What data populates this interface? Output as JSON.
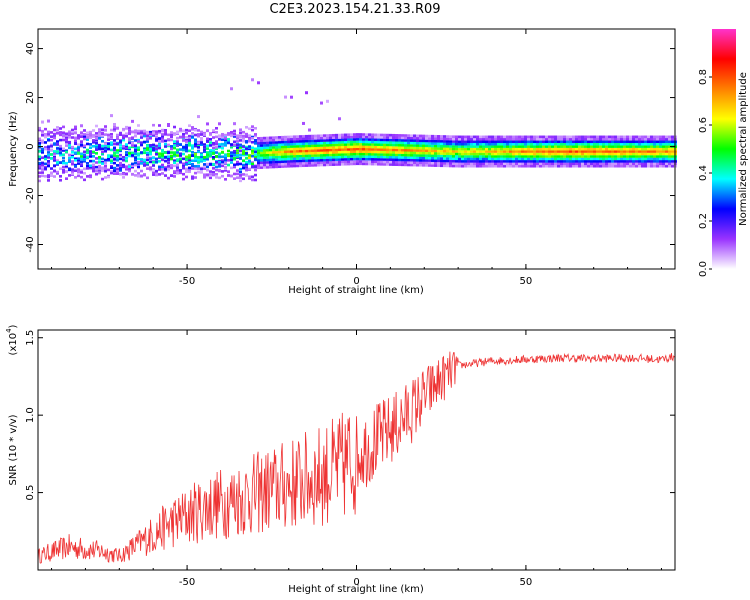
{
  "title": "C2E3.2023.154.21.33.R09",
  "chart_data": [
    {
      "type": "heatmap",
      "xlabel": "Height of straight line (km)",
      "ylabel": "Frequency (Hz)",
      "xlim": [
        -94,
        94
      ],
      "ylim": [
        -50,
        48
      ],
      "xticks": [
        -50,
        0,
        50
      ],
      "yticks": [
        -40,
        -20,
        0,
        20,
        40
      ],
      "colorbar": {
        "label": "Normalized spectral amplitude",
        "range": [
          0,
          1
        ],
        "ticks": [
          0.0,
          0.2,
          0.4,
          0.6,
          0.8
        ],
        "colors": [
          "#ffffff",
          "#9933ff",
          "#0000ff",
          "#00ffff",
          "#00ff00",
          "#ffff00",
          "#ff8000",
          "#ff0000",
          "#ff33cc"
        ]
      },
      "signal_band": {
        "description_points": [
          {
            "x": -94,
            "freq": -3,
            "amp": 0.3
          },
          {
            "x": -60,
            "freq": -2,
            "amp": 0.4
          },
          {
            "x": -35,
            "freq": -3,
            "amp": 0.45
          },
          {
            "x": -20,
            "freq": -2,
            "amp": 0.75
          },
          {
            "x": 0,
            "freq": -1,
            "amp": 0.8
          },
          {
            "x": 30,
            "freq": -2,
            "amp": 0.65
          },
          {
            "x": 60,
            "freq": -2,
            "amp": 0.8
          },
          {
            "x": 90,
            "freq": -2,
            "amp": 0.75
          }
        ]
      }
    },
    {
      "type": "line",
      "xlabel": "Height of straight line (km)",
      "ylabel": "SNR (10 * v/v)",
      "y_multiplier": "(x10",
      "y_multiplier_exp": "4",
      "y_multiplier_close": ")",
      "xlim": [
        -94,
        94
      ],
      "ylim": [
        0,
        15500
      ],
      "xticks": [
        -50,
        0,
        50
      ],
      "yticks": [
        5000,
        10000,
        15000
      ],
      "ytick_labels": [
        "0.5",
        "1.0",
        "1.5"
      ],
      "color": "#ee3333",
      "series": [
        {
          "x": [
            -94,
            -85,
            -75,
            -70,
            -65,
            -55,
            -45,
            -35,
            -25,
            -15,
            -5,
            0,
            5,
            10,
            15,
            20,
            25,
            30,
            40,
            50,
            60,
            70,
            80,
            90,
            94
          ],
          "values": [
            900,
            1500,
            1200,
            900,
            1600,
            3000,
            4000,
            4600,
            5200,
            5800,
            6500,
            7500,
            8200,
            9000,
            10000,
            11200,
            12300,
            13200,
            13500,
            13600,
            13700,
            13650,
            13700,
            13600,
            13800
          ]
        }
      ]
    }
  ]
}
